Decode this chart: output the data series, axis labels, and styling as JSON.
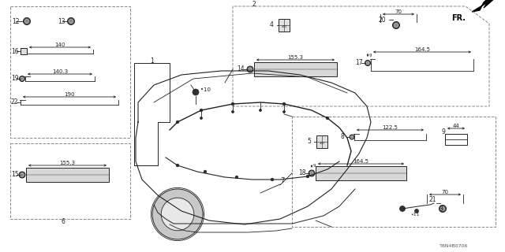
{
  "bg_color": "#ffffff",
  "diagram_code": "T8N4B0706",
  "line_color": "#222222",
  "dash_color": "#888888"
}
